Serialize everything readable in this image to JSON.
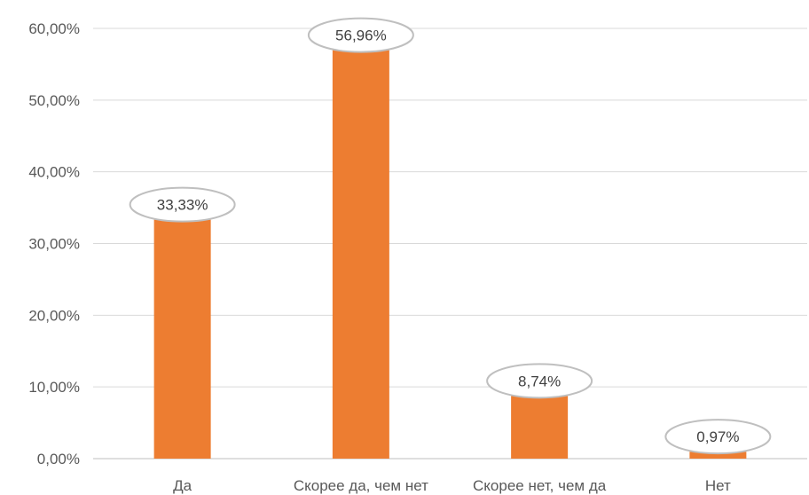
{
  "chart_data": {
    "type": "bar",
    "categories": [
      "Да",
      "Скорее да, чем нет",
      "Скорее нет, чем да",
      "Нет"
    ],
    "values": [
      33.33,
      56.96,
      8.74,
      0.97
    ],
    "data_labels": [
      "33,33%",
      "56,96%",
      "8,74%",
      "0,97%"
    ],
    "y_ticks": [
      0,
      10,
      20,
      30,
      40,
      50,
      60
    ],
    "y_tick_labels": [
      "0,00%",
      "10,00%",
      "20,00%",
      "30,00%",
      "40,00%",
      "50,00%",
      "60,00%"
    ],
    "ylim": [
      0,
      60
    ],
    "grid": true,
    "legend": "none",
    "bar_color": "#ED7D31"
  }
}
